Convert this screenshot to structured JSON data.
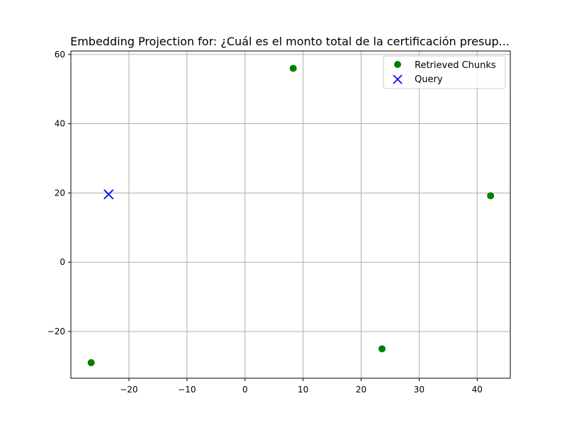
{
  "chart_data": {
    "type": "scatter",
    "title": "Embedding Projection for: ¿Cuál es el monto total de la certificación presup...",
    "xlabel": "",
    "ylabel": "",
    "xlim": [
      -30,
      45.7
    ],
    "ylim": [
      -33.5,
      61
    ],
    "grid": true,
    "legend_location": "top-right",
    "x_ticks": [
      -20,
      -10,
      0,
      10,
      20,
      30,
      40
    ],
    "x_tick_labels": [
      "−20",
      "−10",
      "0",
      "10",
      "20",
      "30",
      "40"
    ],
    "y_ticks": [
      -20,
      0,
      20,
      40,
      60
    ],
    "y_tick_labels": [
      "−20",
      "0",
      "20",
      "40",
      "60"
    ],
    "series": [
      {
        "name": "Retrieved Chunks",
        "marker": "circle",
        "color": "#008000",
        "points": [
          {
            "x": 8.3,
            "y": 56.0
          },
          {
            "x": 42.3,
            "y": 19.2
          },
          {
            "x": 23.6,
            "y": -25.0
          },
          {
            "x": -26.5,
            "y": -29.0
          }
        ]
      },
      {
        "name": "Query",
        "marker": "x",
        "color": "#0000ff",
        "points": [
          {
            "x": -23.5,
            "y": 19.6
          }
        ]
      }
    ]
  }
}
